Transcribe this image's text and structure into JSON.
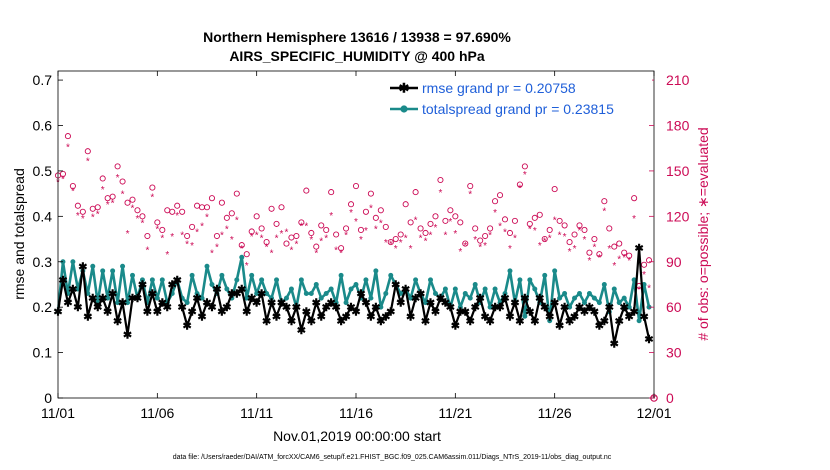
{
  "chart_data": {
    "type": "line",
    "title": "Northern Hemisphere 13616 / 13938 = 97.690%",
    "subtitle": "AIRS_SPECIFIC_HUMIDITY @ 400 hPa",
    "xlabel": "Nov.01,2019 00:00:00 start",
    "ylabel": "rmse and totalspread",
    "ylabel_right": "# of obs: o=possible; ∗=evaluated",
    "xlim": [
      0,
      30
    ],
    "ylim": [
      0,
      0.72
    ],
    "ylim_right": [
      0,
      216
    ],
    "x_ticks": [
      0,
      5,
      10,
      15,
      20,
      25,
      30
    ],
    "x_tick_labels": [
      "11/01",
      "11/06",
      "11/11",
      "11/16",
      "11/21",
      "11/26",
      "12/01"
    ],
    "y_ticks": [
      0,
      0.1,
      0.2,
      0.3,
      0.4,
      0.5,
      0.6,
      0.7
    ],
    "y_tick_labels": [
      "0",
      "0.1",
      "0.2",
      "0.3",
      "0.4",
      "0.5",
      "0.6",
      "0.7"
    ],
    "y_ticks_right": [
      0,
      30,
      60,
      90,
      120,
      150,
      180,
      210
    ],
    "y_tick_labels_right": [
      "0",
      "30",
      "60",
      "90",
      "120",
      "150",
      "180",
      "210"
    ],
    "legend": {
      "position": "top-right",
      "entries": [
        "rmse grand pr = 0.20758",
        "totalspread grand pr = 0.23815"
      ]
    },
    "colors": {
      "rmse": "#000000",
      "spread": "#1a8a8a",
      "obs": "#cc0a55",
      "legend_text": "#1f5fd9"
    },
    "x": [
      0.0,
      0.25,
      0.5,
      0.75,
      1.0,
      1.25,
      1.5,
      1.75,
      2.0,
      2.25,
      2.5,
      2.75,
      3.0,
      3.25,
      3.5,
      3.75,
      4.0,
      4.25,
      4.5,
      4.75,
      5.0,
      5.25,
      5.5,
      5.75,
      6.0,
      6.25,
      6.5,
      6.75,
      7.0,
      7.25,
      7.5,
      7.75,
      8.0,
      8.25,
      8.5,
      8.75,
      9.0,
      9.25,
      9.5,
      9.75,
      10.0,
      10.25,
      10.5,
      10.75,
      11.0,
      11.25,
      11.5,
      11.75,
      12.0,
      12.25,
      12.5,
      12.75,
      13.0,
      13.25,
      13.5,
      13.75,
      14.0,
      14.25,
      14.5,
      14.75,
      15.0,
      15.25,
      15.5,
      15.75,
      16.0,
      16.25,
      16.5,
      16.75,
      17.0,
      17.25,
      17.5,
      17.75,
      18.0,
      18.25,
      18.5,
      18.75,
      19.0,
      19.25,
      19.5,
      19.75,
      20.0,
      20.25,
      20.5,
      20.75,
      21.0,
      21.25,
      21.5,
      21.75,
      22.0,
      22.25,
      22.5,
      22.75,
      23.0,
      23.25,
      23.5,
      23.75,
      24.0,
      24.25,
      24.5,
      24.75,
      25.0,
      25.25,
      25.5,
      25.75,
      26.0,
      26.25,
      26.5,
      26.75,
      27.0,
      27.25,
      27.5,
      27.75,
      28.0,
      28.25,
      28.5,
      28.75,
      29.0,
      29.25,
      29.5,
      29.75
    ],
    "series": [
      {
        "name": "rmse",
        "values": [
          0.19,
          0.26,
          0.21,
          0.24,
          0.2,
          0.29,
          0.18,
          0.22,
          0.2,
          0.22,
          0.19,
          0.23,
          0.17,
          0.21,
          0.14,
          0.22,
          0.22,
          0.25,
          0.19,
          0.23,
          0.19,
          0.21,
          0.2,
          0.25,
          0.26,
          0.2,
          0.16,
          0.19,
          0.22,
          0.18,
          0.21,
          0.2,
          0.24,
          0.19,
          0.2,
          0.23,
          0.23,
          0.24,
          0.19,
          0.22,
          0.21,
          0.23,
          0.17,
          0.21,
          0.18,
          0.21,
          0.2,
          0.17,
          0.2,
          0.15,
          0.19,
          0.17,
          0.21,
          0.18,
          0.2,
          0.21,
          0.2,
          0.17,
          0.18,
          0.2,
          0.19,
          0.23,
          0.21,
          0.18,
          0.2,
          0.17,
          0.18,
          0.19,
          0.25,
          0.21,
          0.24,
          0.18,
          0.22,
          0.23,
          0.17,
          0.21,
          0.19,
          0.22,
          0.21,
          0.2,
          0.16,
          0.19,
          0.19,
          0.17,
          0.2,
          0.22,
          0.18,
          0.17,
          0.2,
          0.2,
          0.22,
          0.18,
          0.21,
          0.17,
          0.22,
          0.19,
          0.17,
          0.22,
          0.2,
          0.18,
          0.21,
          0.16,
          0.2,
          0.17,
          0.18,
          0.2,
          0.19,
          0.2,
          0.19,
          0.16,
          0.17,
          0.2,
          0.12,
          0.17,
          0.2,
          0.18,
          0.19,
          0.33,
          0.18,
          0.13
        ]
      },
      {
        "name": "totalspread",
        "values": [
          0.19,
          0.3,
          0.23,
          0.3,
          0.24,
          0.28,
          0.23,
          0.29,
          0.21,
          0.28,
          0.22,
          0.28,
          0.21,
          0.29,
          0.21,
          0.27,
          0.22,
          0.26,
          0.21,
          0.26,
          0.22,
          0.26,
          0.21,
          0.23,
          0.26,
          0.22,
          0.21,
          0.27,
          0.23,
          0.22,
          0.29,
          0.25,
          0.23,
          0.27,
          0.24,
          0.22,
          0.26,
          0.31,
          0.22,
          0.27,
          0.23,
          0.26,
          0.23,
          0.22,
          0.26,
          0.21,
          0.22,
          0.24,
          0.2,
          0.26,
          0.23,
          0.23,
          0.25,
          0.22,
          0.23,
          0.24,
          0.21,
          0.27,
          0.21,
          0.24,
          0.25,
          0.22,
          0.26,
          0.22,
          0.28,
          0.2,
          0.23,
          0.27,
          0.25,
          0.23,
          0.24,
          0.22,
          0.26,
          0.23,
          0.21,
          0.26,
          0.23,
          0.22,
          0.24,
          0.2,
          0.24,
          0.2,
          0.23,
          0.22,
          0.25,
          0.21,
          0.24,
          0.2,
          0.24,
          0.21,
          0.23,
          0.28,
          0.21,
          0.26,
          0.18,
          0.26,
          0.24,
          0.21,
          0.27,
          0.17,
          0.28,
          0.22,
          0.23,
          0.2,
          0.22,
          0.23,
          0.21,
          0.23,
          0.22,
          0.21,
          0.25,
          0.19,
          0.24,
          0.21,
          0.22,
          0.2,
          0.26,
          0.17,
          0.25,
          0.2
        ]
      },
      {
        "name": "obs_possible",
        "values": [
          147,
          148,
          173,
          140,
          127,
          123,
          163,
          125,
          126,
          145,
          132,
          133,
          153,
          143,
          129,
          131,
          124,
          120,
          107,
          139,
          116,
          111,
          124,
          123,
          127,
          123,
          107,
          113,
          127,
          126,
          126,
          132,
          107,
          129,
          119,
          122,
          135,
          101,
          95,
          110,
          120,
          112,
          103,
          125,
          115,
          126,
          102,
          106,
          107,
          116,
          137,
          109,
          100,
          114,
          111,
          136,
          108,
          99,
          112,
          128,
          140,
          111,
          123,
          135,
          119,
          124,
          113,
          103,
          105,
          108,
          128,
          116,
          136,
          112,
          109,
          115,
          120,
          144,
          117,
          124,
          120,
          116,
          102,
          140,
          112,
          104,
          107,
          112,
          130,
          134,
          118,
          109,
          117,
          141,
          153,
          115,
          119,
          121,
          105,
          111,
          138,
          117,
          114,
          103,
          108,
          114,
          111,
          96,
          105,
          95,
          130,
          112,
          100,
          102,
          96,
          94,
          132,
          74,
          88,
          91
        ]
      },
      {
        "name": "obs_evaluated",
        "values": [
          143,
          145,
          166,
          137,
          121,
          119,
          157,
          120,
          122,
          138,
          128,
          129,
          146,
          135,
          109,
          126,
          119,
          116,
          98,
          133,
          112,
          106,
          95,
          107,
          121,
          108,
          102,
          101,
          110,
          114,
          120,
          96,
          100,
          108,
          112,
          105,
          118,
          99,
          88,
          107,
          108,
          106,
          100,
          96,
          106,
          109,
          110,
          98,
          102,
          114,
          114,
          105,
          96,
          104,
          106,
          121,
          98,
          96,
          108,
          123,
          117,
          105,
          111,
          126,
          112,
          116,
          103,
          102,
          99,
          103,
          106,
          99,
          118,
          106,
          104,
          108,
          113,
          136,
          108,
          117,
          109,
          97,
          101,
          135,
          105,
          100,
          101,
          108,
          123,
          114,
          110,
          99,
          106,
          139,
          148,
          112,
          111,
          101,
          104,
          106,
          118,
          108,
          107,
          97,
          99,
          111,
          105,
          91,
          100,
          93,
          124,
          99,
          88,
          92,
          93,
          91,
          119,
          72,
          82,
          73
        ]
      }
    ]
  },
  "footer": {
    "data_file": "data file: /Users/raeder/DAI/ATM_forcXX/CAM6_setup/f.e21.FHIST_BGC.f09_025.CAM6assim.011/Diags_NTrS_2019-11/obs_diag_output.nc"
  }
}
